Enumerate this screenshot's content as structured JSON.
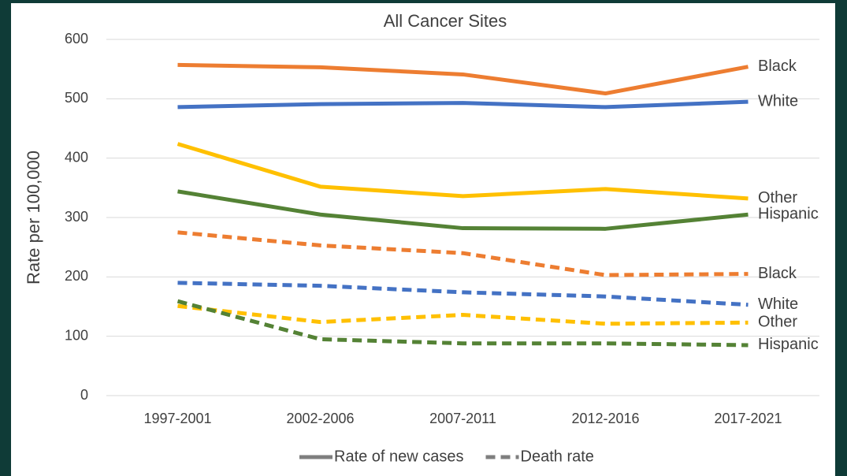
{
  "chart_data": {
    "type": "line",
    "title": "All Cancer Sites",
    "y_label": "Rate per 100,000",
    "categories": [
      "1997-2001",
      "2002-2006",
      "2007-2011",
      "2012-2016",
      "2017-2021"
    ],
    "ylim": [
      0,
      600
    ],
    "yticks": [
      0,
      100,
      200,
      300,
      400,
      500,
      600
    ],
    "grid": true,
    "series": [
      {
        "name": "Black",
        "color": "#ed7d31",
        "dash": false,
        "values": [
          557,
          553,
          541,
          509,
          554
        ]
      },
      {
        "name": "White",
        "color": "#4472c4",
        "dash": false,
        "values": [
          486,
          491,
          493,
          486,
          495
        ]
      },
      {
        "name": "Other",
        "color": "#ffc000",
        "dash": false,
        "values": [
          424,
          352,
          336,
          348,
          332
        ]
      },
      {
        "name": "Hispanic",
        "color": "#548235",
        "dash": false,
        "values": [
          344,
          305,
          282,
          281,
          305
        ]
      },
      {
        "name": "Black",
        "color": "#ed7d31",
        "dash": true,
        "values": [
          275,
          253,
          240,
          203,
          205
        ]
      },
      {
        "name": "White",
        "color": "#4472c4",
        "dash": true,
        "values": [
          190,
          185,
          174,
          167,
          153
        ]
      },
      {
        "name": "Other",
        "color": "#ffc000",
        "dash": true,
        "values": [
          151,
          124,
          136,
          121,
          123
        ]
      },
      {
        "name": "Hispanic",
        "color": "#548235",
        "dash": true,
        "values": [
          159,
          95,
          88,
          88,
          85
        ]
      }
    ],
    "legend": [
      {
        "label": "Rate of new cases",
        "dash": false,
        "color": "#7f7f7f"
      },
      {
        "label": "Death rate",
        "dash": true,
        "color": "#7f7f7f"
      }
    ]
  }
}
